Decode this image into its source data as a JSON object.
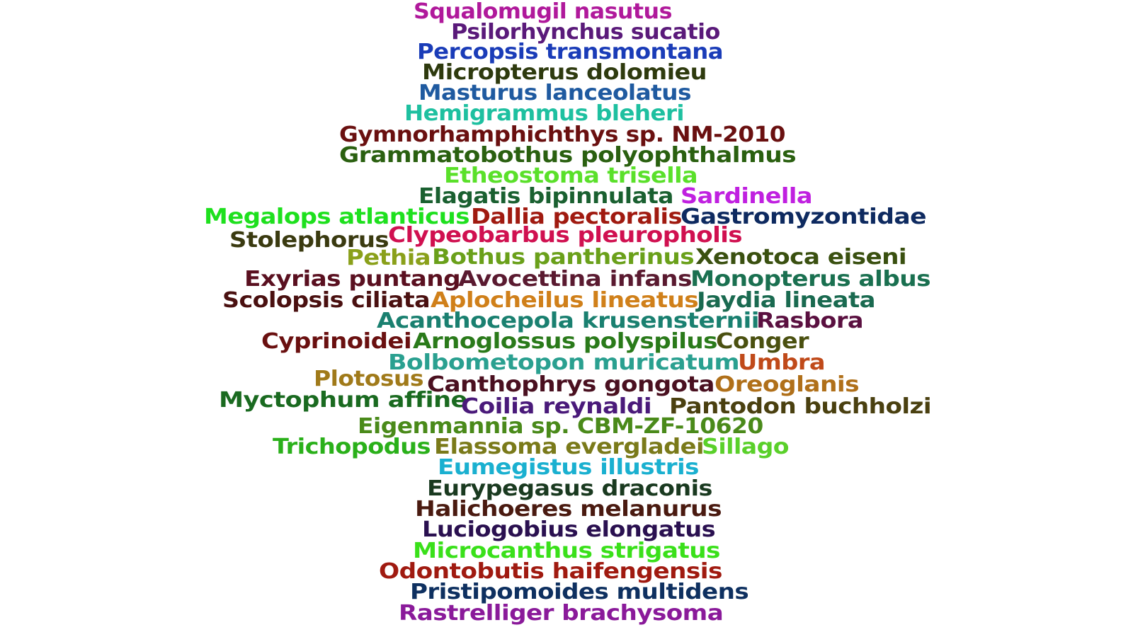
{
  "words": [
    {
      "text": "Squalomugil nasutus",
      "color": "#b0199b"
    },
    {
      "text": "Psilorhynchus sucatio",
      "color": "#5a1a7a"
    },
    {
      "text": "Percopsis transmontana",
      "color": "#1a3cb8"
    },
    {
      "text": "Micropterus dolomieu",
      "color": "#2e3a0e"
    },
    {
      "text": "Masturus lanceolatus",
      "color": "#1f5aa0"
    },
    {
      "text": "Hemigrammus bleheri",
      "color": "#1ec0a0"
    },
    {
      "text": "Gymnorhamphichthys sp. NM-2010",
      "color": "#6a1010"
    },
    {
      "text": "Grammatobothus polyophthalmus",
      "color": "#2a6010"
    },
    {
      "text": "Etheostoma trisella",
      "color": "#5ae02a"
    },
    {
      "text": "Elagatis bipinnulata",
      "color": "#1a6030"
    },
    {
      "text": "Sardinella",
      "color": "#c020e0"
    },
    {
      "text": "Megalops atlanticus",
      "color": "#1ee01e"
    },
    {
      "text": "Dallia pectoralis",
      "color": "#a01a10"
    },
    {
      "text": "Gastromyzontidae",
      "color": "#0e2a60"
    },
    {
      "text": "Stolephorus",
      "color": "#3a3a10"
    },
    {
      "text": "Clypeobarbus pleuropholis",
      "color": "#d01050"
    },
    {
      "text": "Pethia",
      "color": "#8aa01a"
    },
    {
      "text": "Bothus pantherinus",
      "color": "#6aa01a"
    },
    {
      "text": "Xenotoca eiseni",
      "color": "#3a5010"
    },
    {
      "text": "Exyrias puntang",
      "color": "#5a1020"
    },
    {
      "text": "Avocettina infans",
      "color": "#5a1a30"
    },
    {
      "text": "Monopterus albus",
      "color": "#1a7050"
    },
    {
      "text": "Scolopsis ciliata",
      "color": "#4a1010"
    },
    {
      "text": "Aplocheilus lineatus",
      "color": "#d0801a"
    },
    {
      "text": "Jaydia lineata",
      "color": "#1a6a50"
    },
    {
      "text": "Acanthocepola krusensternii",
      "color": "#1a8070"
    },
    {
      "text": "Rasbora",
      "color": "#5a1040"
    },
    {
      "text": "Cyprinoidei",
      "color": "#6a1010"
    },
    {
      "text": "Arnoglossus polyspilus",
      "color": "#2a7a1a"
    },
    {
      "text": "Conger",
      "color": "#4a5010"
    },
    {
      "text": "Bolbometopon muricatum",
      "color": "#2aa090"
    },
    {
      "text": "Umbra",
      "color": "#c04a1a"
    },
    {
      "text": "Plotosus",
      "color": "#a07a1a"
    },
    {
      "text": "Canthophrys gongota",
      "color": "#4a1020"
    },
    {
      "text": "Oreoglanis",
      "color": "#b0701a"
    },
    {
      "text": "Myctophum affine",
      "color": "#1a6a20"
    },
    {
      "text": "Coilia reynaldi",
      "color": "#4a1a7a"
    },
    {
      "text": "Pantodon buchholzi",
      "color": "#4a4010"
    },
    {
      "text": "Eigenmannia sp. CBM-ZF-10620",
      "color": "#4a8a1a"
    },
    {
      "text": "Trichopodus",
      "color": "#2ab01a"
    },
    {
      "text": "Elassoma evergladei",
      "color": "#7a7a1a"
    },
    {
      "text": "Sillago",
      "color": "#5ad02a"
    },
    {
      "text": "Eumegistus illustris",
      "color": "#1ab0d0"
    },
    {
      "text": "Eurypegasus draconis",
      "color": "#1a3a20"
    },
    {
      "text": "Halichoeres melanurus",
      "color": "#4a1a10"
    },
    {
      "text": "Luciogobius elongatus",
      "color": "#2a1050"
    },
    {
      "text": "Microcanthus strigatus",
      "color": "#3ae01a"
    },
    {
      "text": "Odontobutis haifengensis",
      "color": "#a01a10"
    },
    {
      "text": "Pristipomoides multidens",
      "color": "#0e3060"
    },
    {
      "text": "Rastrelliger brachysoma",
      "color": "#8a1a9a"
    }
  ]
}
